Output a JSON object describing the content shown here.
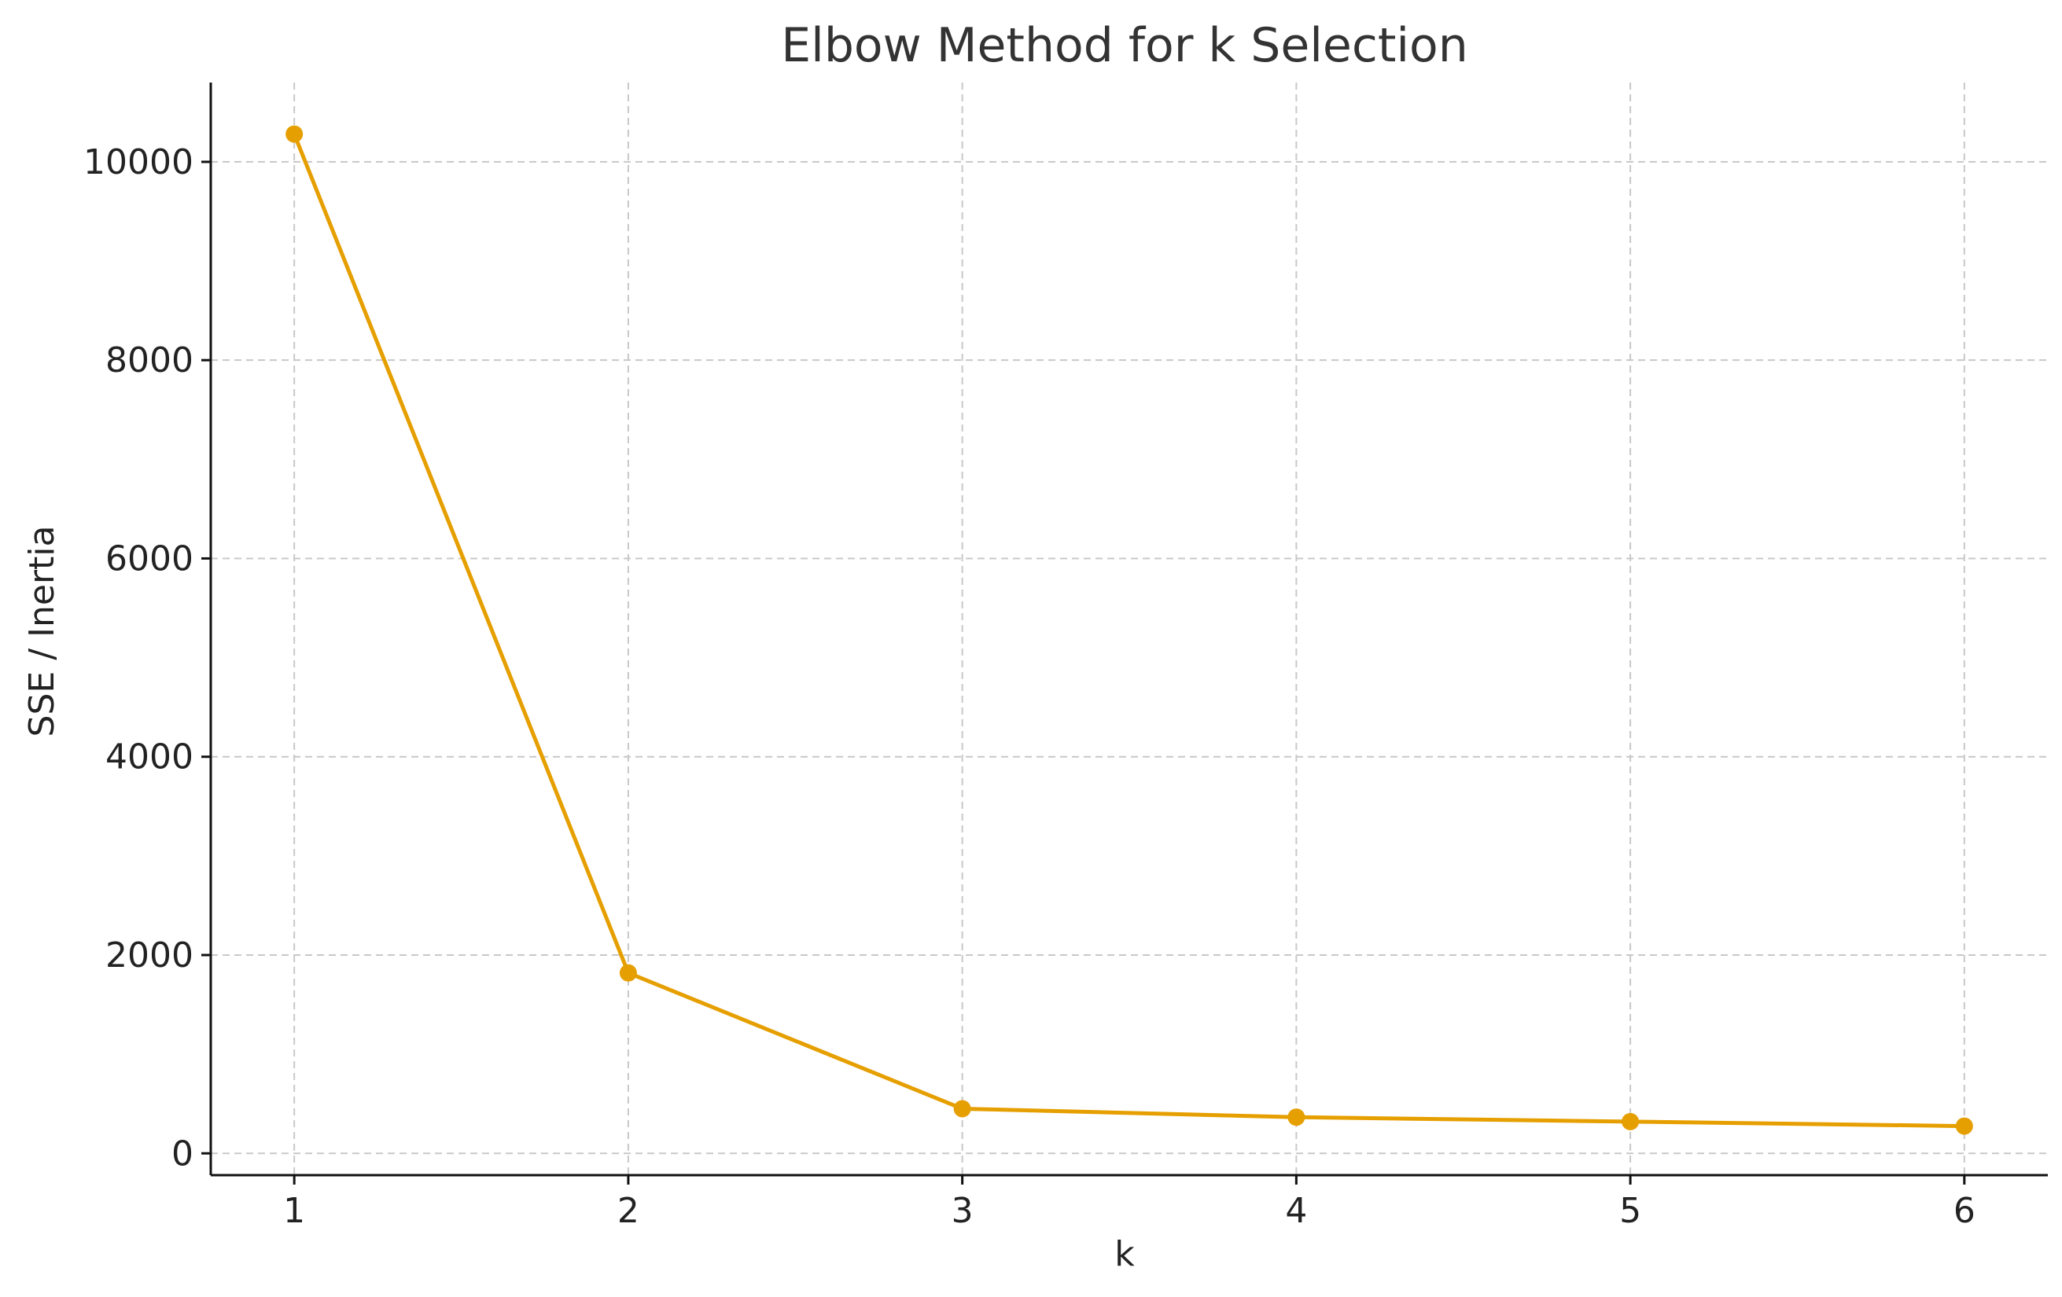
{
  "chart_data": {
    "type": "line",
    "title": "Elbow Method for k Selection",
    "xlabel": "k",
    "ylabel": "SSE / Inertia",
    "x": [
      1,
      2,
      3,
      4,
      5,
      6
    ],
    "series": [
      {
        "values": [
          10280,
          1820,
          450,
          365,
          320,
          275
        ]
      }
    ],
    "xlim": [
      0.75,
      6.25
    ],
    "ylim": [
      -220,
      10800
    ],
    "xticks": [
      1,
      2,
      3,
      4,
      5,
      6
    ],
    "yticks": [
      0,
      2000,
      4000,
      6000,
      8000,
      10000
    ],
    "grid": true,
    "marker": "circle",
    "colors": {
      "line": "#E69F00",
      "grid": "#c8c8c8",
      "axis": "#111111",
      "text": "#222222",
      "title": "#333333"
    }
  }
}
